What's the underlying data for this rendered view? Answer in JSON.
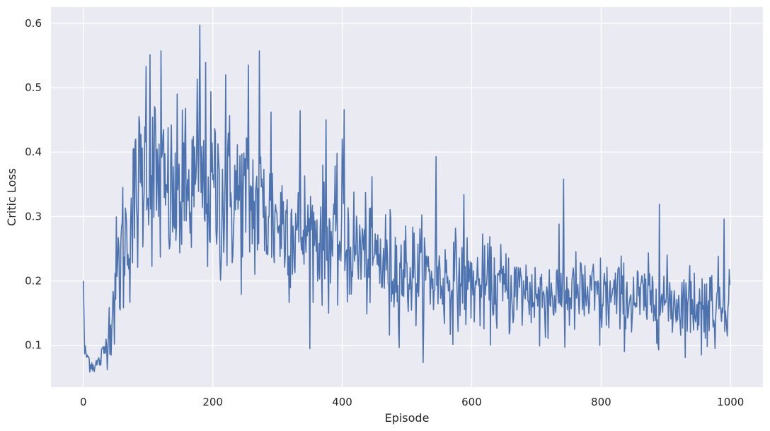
{
  "chart_data": {
    "type": "line",
    "title": "",
    "xlabel": "Episode",
    "ylabel": "Critic Loss",
    "xlim": [
      -50,
      1050
    ],
    "ylim": [
      0.035,
      0.625
    ],
    "x_ticks": [
      0,
      200,
      400,
      600,
      800,
      1000
    ],
    "y_ticks": [
      0.1,
      0.2,
      0.3,
      0.4,
      0.5,
      0.6
    ],
    "grid": true,
    "background": "#eaeaf2",
    "grid_color": "#ffffff",
    "series": [
      {
        "color": "#4c72b0",
        "x_start": 0,
        "x_step": 1,
        "count": 1000,
        "anchor_x": [
          0,
          2,
          5,
          10,
          15,
          20,
          25,
          30,
          35,
          40,
          45,
          50,
          55,
          60,
          70,
          80,
          90,
          100,
          110,
          120,
          130,
          140,
          150,
          160,
          170,
          180,
          190,
          200,
          210,
          220,
          230,
          240,
          250,
          260,
          270,
          280,
          290,
          300,
          320,
          340,
          360,
          380,
          400,
          420,
          440,
          460,
          480,
          500,
          520,
          540,
          560,
          580,
          600,
          620,
          640,
          660,
          680,
          700,
          720,
          740,
          760,
          780,
          800,
          820,
          840,
          860,
          880,
          900,
          920,
          940,
          960,
          980,
          1000
        ],
        "anchor_mean": [
          0.2,
          0.09,
          0.085,
          0.075,
          0.068,
          0.07,
          0.075,
          0.085,
          0.1,
          0.13,
          0.16,
          0.19,
          0.22,
          0.25,
          0.28,
          0.32,
          0.36,
          0.37,
          0.365,
          0.34,
          0.33,
          0.325,
          0.33,
          0.33,
          0.34,
          0.345,
          0.345,
          0.34,
          0.335,
          0.33,
          0.33,
          0.33,
          0.325,
          0.32,
          0.315,
          0.31,
          0.3,
          0.295,
          0.285,
          0.275,
          0.27,
          0.265,
          0.26,
          0.25,
          0.24,
          0.23,
          0.22,
          0.215,
          0.21,
          0.205,
          0.2,
          0.2,
          0.195,
          0.19,
          0.19,
          0.185,
          0.185,
          0.18,
          0.18,
          0.18,
          0.178,
          0.176,
          0.175,
          0.174,
          0.172,
          0.17,
          0.17,
          0.168,
          0.167,
          0.166,
          0.165,
          0.166,
          0.18
        ],
        "anchor_noise": [
          0.0,
          0.008,
          0.008,
          0.008,
          0.007,
          0.007,
          0.008,
          0.01,
          0.015,
          0.025,
          0.04,
          0.05,
          0.055,
          0.06,
          0.06,
          0.065,
          0.07,
          0.07,
          0.07,
          0.07,
          0.065,
          0.065,
          0.065,
          0.065,
          0.07,
          0.07,
          0.07,
          0.07,
          0.07,
          0.07,
          0.065,
          0.065,
          0.065,
          0.065,
          0.062,
          0.06,
          0.058,
          0.055,
          0.055,
          0.052,
          0.05,
          0.05,
          0.05,
          0.048,
          0.045,
          0.045,
          0.042,
          0.042,
          0.04,
          0.04,
          0.038,
          0.037,
          0.036,
          0.035,
          0.035,
          0.034,
          0.034,
          0.033,
          0.033,
          0.033,
          0.032,
          0.032,
          0.032,
          0.031,
          0.031,
          0.03,
          0.03,
          0.03,
          0.03,
          0.03,
          0.03,
          0.03,
          0.03
        ],
        "peaks": [
          [
            0,
            0.2
          ],
          [
            97,
            0.533
          ],
          [
            103,
            0.551
          ],
          [
            120,
            0.557
          ],
          [
            153,
            0.465
          ],
          [
            176,
            0.513
          ],
          [
            180,
            0.597
          ],
          [
            189,
            0.539
          ],
          [
            220,
            0.52
          ],
          [
            255,
            0.535
          ],
          [
            272,
            0.557
          ],
          [
            290,
            0.462
          ],
          [
            335,
            0.464
          ],
          [
            375,
            0.45
          ],
          [
            400,
            0.42
          ],
          [
            403,
            0.466
          ],
          [
            545,
            0.393
          ],
          [
            588,
            0.334
          ],
          [
            742,
            0.358
          ],
          [
            890,
            0.319
          ],
          [
            990,
            0.296
          ],
          [
            473,
            0.116
          ],
          [
            705,
            0.099
          ],
          [
            744,
            0.097
          ],
          [
            798,
            0.1
          ],
          [
            955,
            0.085
          ],
          [
            976,
            0.095
          ]
        ],
        "seed": 12345
      }
    ]
  }
}
